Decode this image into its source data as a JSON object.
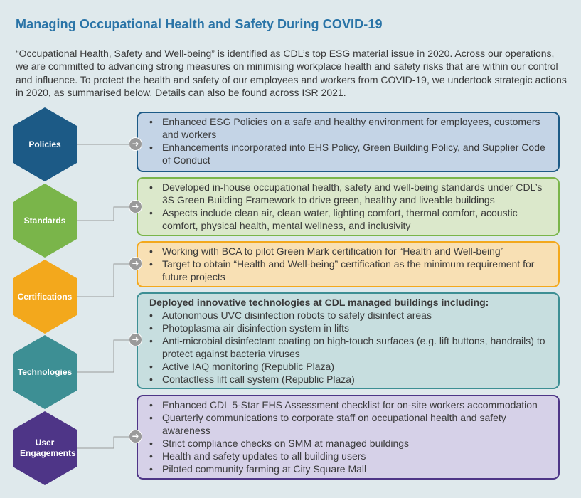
{
  "title": "Managing Occupational Health and Safety During COVID-19",
  "intro": "“Occupational Health, Safety and Well-being” is identified as CDL’s top ESG material issue in 2020. Across our operations, we are committed to advancing strong measures on minimising workplace health and safety risks that are within our control and influence. To protect the health and safety of our employees and workers from COVID-19, we undertook strategic actions in 2020, as summarised below. Details can also be found across ISR 2021.",
  "colors": {
    "policies": "#1c5a86",
    "standards": "#7ab54a",
    "certifications": "#f3a81c",
    "technologies": "#3d8f94",
    "user_engagements": "#4e3587"
  },
  "sections": [
    {
      "label": "Policies",
      "heading": "",
      "items": [
        "Enhanced ESG Policies on a safe and healthy environment for employees, customers and workers",
        "Enhancements incorporated into EHS Policy, Green Building Policy, and Supplier Code of Conduct"
      ]
    },
    {
      "label": "Standards",
      "heading": "",
      "items": [
        "Developed in-house occupational health, safety and well-being standards under CDL’s 3S Green Building Framework to drive green, healthy and liveable buildings",
        "Aspects include clean air, clean water, lighting comfort, thermal comfort, acoustic comfort, physical health, mental wellness, and inclusivity"
      ]
    },
    {
      "label": "Certifications",
      "heading": "",
      "items": [
        "Working with BCA to pilot Green Mark certification for “Health and Well-being”",
        "Target to obtain “Health and Well-being” certification as the minimum requirement for future projects"
      ]
    },
    {
      "label": "Technologies",
      "heading": "Deployed innovative technologies at CDL managed buildings including:",
      "items": [
        "Autonomous UVC disinfection robots to safely disinfect areas",
        "Photoplasma air disinfection system in lifts",
        "Anti-microbial disinfectant coating on high-touch surfaces (e.g. lift buttons, handrails) to protect against bacteria viruses",
        "Active IAQ monitoring (Republic Plaza)",
        "Contactless lift call system (Republic Plaza)"
      ]
    },
    {
      "label": "User Engagements",
      "heading": "",
      "items": [
        "Enhanced CDL 5-Star EHS Assessment checklist for on-site workers accommodation",
        "Quarterly communications to corporate staff on occupational health and safety awareness",
        "Strict compliance checks on SMM at managed buildings",
        "Health and safety updates to all building users",
        "Piloted community farming at City Square Mall"
      ]
    }
  ]
}
